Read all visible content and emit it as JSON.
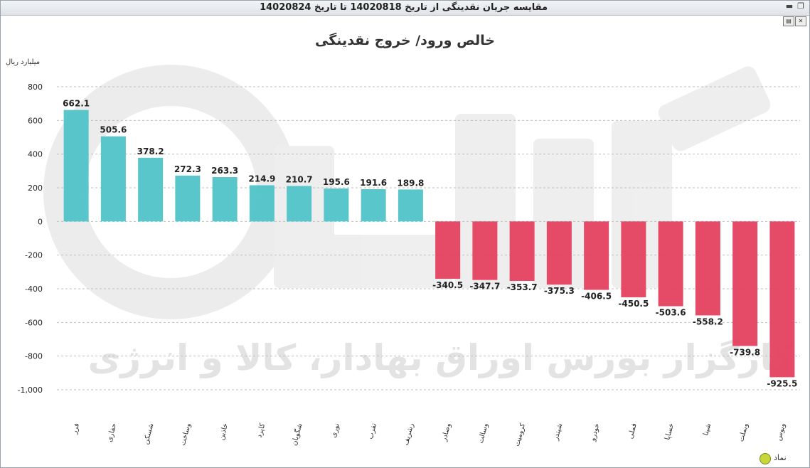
{
  "window": {
    "title": "مقایسه جریان نقدینگی از تاریخ 14020818 تا تاریخ 14020824",
    "minimize_icon": "minimize-icon",
    "restore_icon": "restore-icon",
    "print_icon": "print-icon",
    "export_icon": "export-icon"
  },
  "colors": {
    "positive": "#4fc3c7",
    "negative": "#e4405f",
    "grid": "#bfbfbf"
  },
  "chart_data": {
    "type": "bar",
    "title": "خالص ورود/ خروج نقدینگی",
    "ylabel": "میلیارد ریال",
    "xlabel": "نماد",
    "ylim": [
      -1000,
      800
    ],
    "yticks": [
      800,
      600,
      400,
      200,
      0,
      -200,
      -400,
      -600,
      -800,
      -1000
    ],
    "ytick_labels": [
      "800",
      "600",
      "400",
      "200",
      "0",
      "-200",
      "-400",
      "-600",
      "-800",
      "-1,000"
    ],
    "grid": true,
    "categories": [
      "فرر",
      "حفاری",
      "شسکن",
      "وساخت",
      "خاذین",
      "کاپرد",
      "شگویان",
      "نوری",
      "تفرب",
      "رشریف",
      "وصادر",
      "وسالت",
      "کرومیت",
      "شپندر",
      "خودرو",
      "فملی",
      "خساپا",
      "شپنا",
      "وبملت",
      "وبوس"
    ],
    "values": [
      662.1,
      505.6,
      378.2,
      272.3,
      263.3,
      214.9,
      210.7,
      195.6,
      191.6,
      189.8,
      -340.5,
      -347.7,
      -353.7,
      -375.3,
      -406.5,
      -450.5,
      -503.6,
      -558.2,
      -739.8,
      -925.5
    ],
    "data_labels": [
      "662.1",
      "505.6",
      "378.2",
      "272.3",
      "263.3",
      "214.9",
      "210.7",
      "195.6",
      "191.6",
      "189.8",
      "-340.5",
      "-347.7",
      "-353.7",
      "-375.3",
      "-406.5",
      "-450.5",
      "-503.6",
      "-558.2",
      "-739.8",
      "-925.5"
    ]
  },
  "watermark": {
    "text": "کارگزار بورس اوراق بهادار، کالا و انرژی"
  }
}
